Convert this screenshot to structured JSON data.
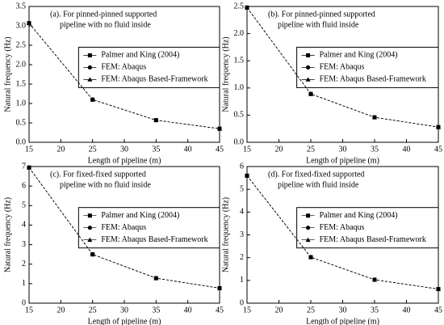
{
  "chart_data": [
    {
      "type": "line",
      "title": [
        "(a). For pinned-pinned supported",
        "pipeline with no fluid inside"
      ],
      "x_label": "Length of pipeline (m)",
      "y_label": "Natural frequency (Hz)",
      "x": [
        15,
        25,
        35,
        45
      ],
      "xlim": [
        15,
        45
      ],
      "xticks": [
        15,
        20,
        25,
        30,
        35,
        40,
        45
      ],
      "ylim": [
        0,
        3.5
      ],
      "yticks": [
        0.0,
        0.5,
        1.0,
        1.5,
        2.0,
        2.5,
        3.0,
        3.5
      ],
      "legend": "center right",
      "series": [
        {
          "name": "Palmer and King (2004)",
          "color": "#000000",
          "marker": "square",
          "values": [
            3.07,
            1.1,
            0.57,
            0.35
          ]
        },
        {
          "name": "FEM: Abaqus",
          "color": "#000000",
          "marker": "circle",
          "values": [
            3.07,
            1.1,
            0.57,
            0.35
          ]
        },
        {
          "name": "FEM: Abaqus Based-Framework",
          "color": "#000000",
          "marker": "triangle",
          "values": [
            3.07,
            1.1,
            0.57,
            0.35
          ]
        }
      ]
    },
    {
      "type": "line",
      "title": [
        "(b). For pinned-pinned supported",
        "pipeline with fluid inside"
      ],
      "x_label": "Length of pipeline (m)",
      "y_label": "Natural frequency (Hz)",
      "x": [
        15,
        25,
        35,
        45
      ],
      "xlim": [
        15,
        45
      ],
      "xticks": [
        15,
        20,
        25,
        30,
        35,
        40,
        45
      ],
      "ylim": [
        0,
        2.5
      ],
      "yticks": [
        0.0,
        0.5,
        1.0,
        1.5,
        2.0,
        2.5
      ],
      "legend": "center right",
      "series": [
        {
          "name": "Palmer and King (2004)",
          "color": "#000000",
          "marker": "square",
          "values": [
            2.48,
            0.89,
            0.46,
            0.28
          ]
        },
        {
          "name": "FEM: Abaqus",
          "color": "#000000",
          "marker": "circle",
          "values": [
            2.48,
            0.89,
            0.46,
            0.28
          ]
        },
        {
          "name": "FEM: Abaqus Based-Framework",
          "color": "#000000",
          "marker": "triangle",
          "values": [
            2.48,
            0.89,
            0.46,
            0.28
          ]
        }
      ]
    },
    {
      "type": "line",
      "title": [
        "(c). For fixed-fixed supported",
        "pipeline with no fluid inside"
      ],
      "x_label": "Length of pipeline (m)",
      "y_label": "Natural frequency (Hz)",
      "x": [
        15,
        25,
        35,
        45
      ],
      "xlim": [
        15,
        45
      ],
      "xticks": [
        15,
        20,
        25,
        30,
        35,
        40,
        45
      ],
      "ylim": [
        0,
        7
      ],
      "yticks": [
        0,
        1,
        2,
        3,
        4,
        5,
        6,
        7
      ],
      "legend": "center right",
      "series": [
        {
          "name": "Palmer and King (2004)",
          "color": "#000000",
          "marker": "square",
          "values": [
            6.95,
            2.5,
            1.28,
            0.77
          ]
        },
        {
          "name": "FEM: Abaqus",
          "color": "#000000",
          "marker": "circle",
          "values": [
            6.95,
            2.5,
            1.28,
            0.77
          ]
        },
        {
          "name": "FEM: Abaqus Based-Framework",
          "color": "#000000",
          "marker": "triangle",
          "values": [
            6.95,
            2.5,
            1.28,
            0.77
          ]
        }
      ]
    },
    {
      "type": "line",
      "title": [
        "(d). For fixed-fixed supported",
        "pipeline with fluid inside"
      ],
      "x_label": "Length of pipeline (m)",
      "y_label": "Natural frequency (Hz)",
      "x": [
        15,
        25,
        35,
        45
      ],
      "xlim": [
        15,
        45
      ],
      "xticks": [
        15,
        20,
        25,
        30,
        35,
        40,
        45
      ],
      "ylim": [
        0,
        6
      ],
      "yticks": [
        0,
        1,
        2,
        3,
        4,
        5,
        6
      ],
      "legend": "center right",
      "series": [
        {
          "name": "Palmer and King (2004)",
          "color": "#000000",
          "marker": "square",
          "values": [
            5.6,
            2.02,
            1.03,
            0.62
          ]
        },
        {
          "name": "FEM: Abaqus",
          "color": "#000000",
          "marker": "circle",
          "values": [
            5.6,
            2.02,
            1.03,
            0.62
          ]
        },
        {
          "name": "FEM: Abaqus Based-Framework",
          "color": "#000000",
          "marker": "triangle",
          "values": [
            5.6,
            2.02,
            1.03,
            0.62
          ]
        }
      ]
    }
  ]
}
